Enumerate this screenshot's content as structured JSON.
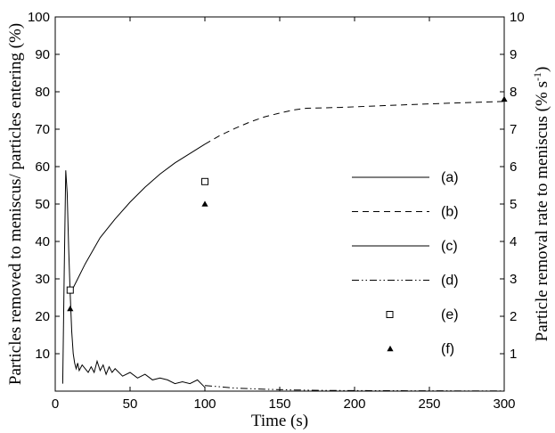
{
  "chart_data": {
    "type": "line",
    "xlabel": "Time (s)",
    "ylabel_left": "Particles removed to meniscus/ particles entering (%)",
    "ylabel_right_prefix": "Particle removal rate to meniscus (% s",
    "ylabel_right_sup": "-1",
    "ylabel_right_suffix": ")",
    "xlim": [
      0,
      300
    ],
    "ylim_left": [
      0,
      100
    ],
    "ylim_right": [
      0,
      10
    ],
    "x_ticks": [
      "0",
      "50",
      "100",
      "150",
      "200",
      "250",
      "300"
    ],
    "y_left_ticks": [
      "10",
      "20",
      "30",
      "40",
      "50",
      "60",
      "70",
      "80",
      "90",
      "100"
    ],
    "y_right_ticks": [
      "1",
      "2",
      "3",
      "4",
      "5",
      "6",
      "7",
      "8",
      "9",
      "10"
    ],
    "grid": false,
    "legend_position": "right-center",
    "series": [
      {
        "name": "(a)",
        "style": "solid",
        "axis": "left",
        "x": [
          10,
          15,
          20,
          30,
          40,
          50,
          60,
          70,
          80,
          90,
          100
        ],
        "y": [
          26,
          30,
          34,
          41,
          46,
          50.5,
          54.5,
          58,
          61,
          63.5,
          66
        ]
      },
      {
        "name": "(b)",
        "style": "dashed",
        "axis": "left",
        "x": [
          100,
          110,
          120,
          130,
          140,
          150,
          160,
          168,
          190,
          220,
          260,
          300
        ],
        "y": [
          66,
          68.3,
          70.2,
          71.9,
          73.3,
          74.3,
          75.2,
          75.6,
          75.8,
          76.3,
          76.9,
          77.4
        ]
      },
      {
        "name": "(c)",
        "style": "solid",
        "axis": "right",
        "x": [
          5,
          6,
          7,
          8,
          9,
          10,
          11,
          12,
          13,
          14,
          15,
          16,
          18,
          20,
          22,
          24,
          26,
          28,
          30,
          32,
          34,
          36,
          38,
          40,
          45,
          50,
          55,
          60,
          65,
          70,
          75,
          80,
          85,
          90,
          95,
          100
        ],
        "y": [
          0.2,
          3.2,
          5.9,
          5.3,
          3.8,
          2.6,
          1.6,
          1.0,
          0.75,
          0.6,
          0.75,
          0.55,
          0.7,
          0.6,
          0.5,
          0.65,
          0.5,
          0.8,
          0.55,
          0.7,
          0.45,
          0.65,
          0.5,
          0.6,
          0.4,
          0.5,
          0.35,
          0.45,
          0.3,
          0.35,
          0.3,
          0.2,
          0.25,
          0.2,
          0.3,
          0.1
        ]
      },
      {
        "name": "(d)",
        "style": "dashdotdot",
        "axis": "right",
        "x": [
          100,
          120,
          140,
          160,
          180,
          200,
          240,
          300
        ],
        "y": [
          0.15,
          0.08,
          0.05,
          0.03,
          0.02,
          0.015,
          0.01,
          0.005
        ]
      },
      {
        "name": "(e)",
        "style": "open-square",
        "axis": "left",
        "x": [
          10,
          100
        ],
        "y": [
          27,
          56
        ]
      },
      {
        "name": "(f)",
        "style": "filled-triangle",
        "axis": "left",
        "x": [
          10,
          100,
          300
        ],
        "y": [
          22,
          50,
          78
        ]
      }
    ]
  }
}
